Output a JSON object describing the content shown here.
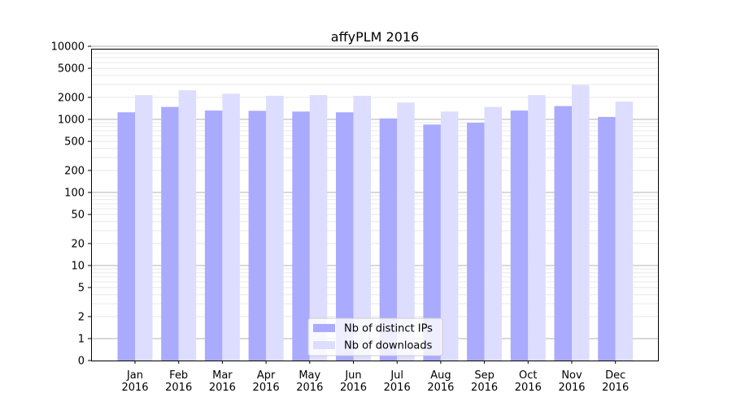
{
  "chart_data": {
    "type": "bar",
    "title": "affyPLM 2016",
    "y_scale": "symlog",
    "ylim": [
      0,
      12000
    ],
    "y_ticks": [
      0,
      1,
      2,
      5,
      10,
      20,
      50,
      100,
      200,
      500,
      1000,
      2000,
      5000,
      10000
    ],
    "y_tick_labels": [
      "0",
      "1",
      "2",
      "5",
      "10",
      "20",
      "50",
      "100",
      "200",
      "500",
      "1000",
      "2000",
      "5000",
      "10000"
    ],
    "categories": [
      "Jan\n2016",
      "Feb\n2016",
      "Mar\n2016",
      "Apr\n2016",
      "May\n2016",
      "Jun\n2016",
      "Jul\n2016",
      "Aug\n2016",
      "Sep\n2016",
      "Oct\n2016",
      "Nov\n2016",
      "Dec\n2016"
    ],
    "series": [
      {
        "name": "Nb of distinct IPs",
        "color": "#aaaaff",
        "values": [
          1250,
          1480,
          1320,
          1310,
          1280,
          1250,
          1030,
          850,
          900,
          1320,
          1520,
          1080
        ]
      },
      {
        "name": "Nb of downloads",
        "color": "#ddddff",
        "values": [
          2150,
          2500,
          2250,
          2100,
          2150,
          2100,
          1700,
          1280,
          1480,
          2150,
          2950,
          1750
        ]
      }
    ],
    "grid": true,
    "legend_position": "lower-center"
  }
}
